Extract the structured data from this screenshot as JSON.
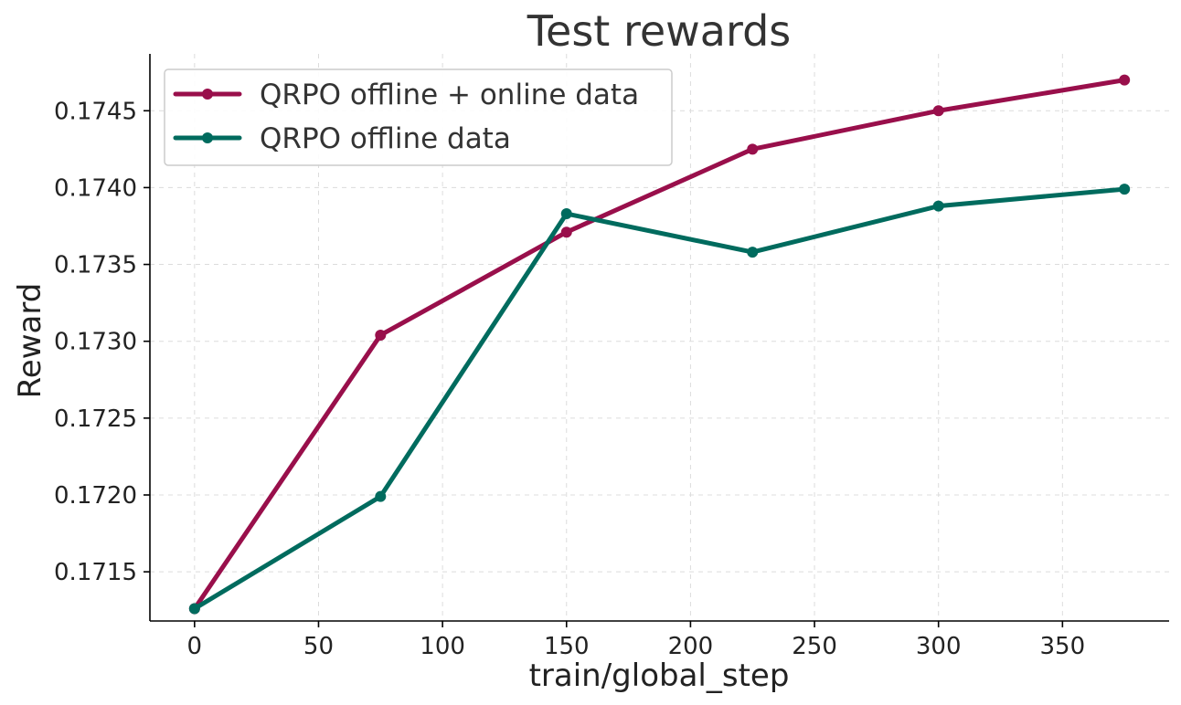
{
  "chart_data": {
    "type": "line",
    "title": "Test rewards",
    "xlabel": "train/global_step",
    "ylabel": "Reward",
    "xlim": [
      -18,
      393
    ],
    "ylim": [
      0.17118,
      0.17487
    ],
    "xticks": [
      0,
      50,
      100,
      150,
      200,
      250,
      300,
      350
    ],
    "yticks": [
      0.1715,
      0.172,
      0.1725,
      0.173,
      0.1735,
      0.174,
      0.1745
    ],
    "xtick_labels": [
      "0",
      "50",
      "100",
      "150",
      "200",
      "250",
      "300",
      "350"
    ],
    "ytick_labels": [
      "0.1715",
      "0.1720",
      "0.1725",
      "0.1730",
      "0.1735",
      "0.1740",
      "0.1745"
    ],
    "grid": true,
    "legend_position": "top-left",
    "series": [
      {
        "name": "QRPO offline + online data",
        "color": "#990f4b",
        "x": [
          0,
          75,
          150,
          225,
          300,
          375
        ],
        "y": [
          0.17126,
          0.17304,
          0.17371,
          0.17425,
          0.1745,
          0.1747
        ]
      },
      {
        "name": "QRPO offline data",
        "color": "#006b5e",
        "x": [
          0,
          75,
          150,
          225,
          300,
          375
        ],
        "y": [
          0.17126,
          0.17199,
          0.17383,
          0.17358,
          0.17388,
          0.17399
        ]
      }
    ]
  }
}
